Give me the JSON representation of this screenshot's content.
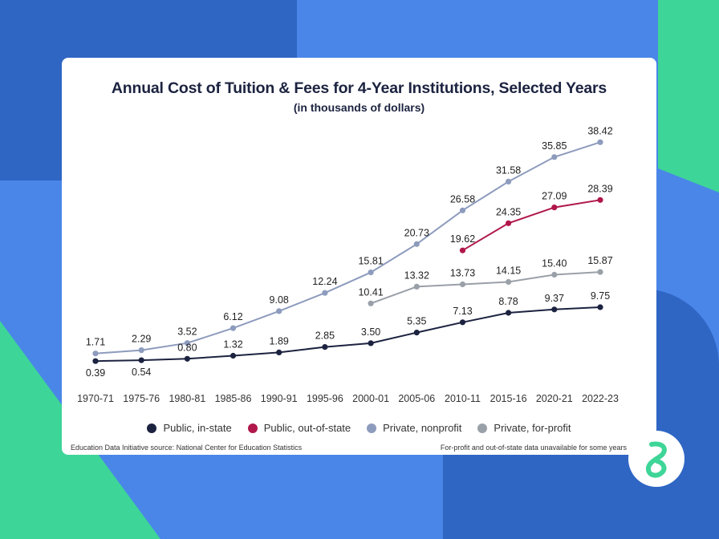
{
  "colors": {
    "background": "#4a86e8",
    "dark_blue": "#2f66c4",
    "green": "#3ed598",
    "public_in_state": "#1c2340",
    "public_out_of_state": "#b0174b",
    "private_nonprofit": "#8d9bbd",
    "private_for_profit": "#9aa0a8"
  },
  "logo_icon": "brand-logo-icon",
  "chart_data": {
    "type": "line",
    "title": "Annual Cost of Tuition & Fees for 4-Year Institutions, Selected Years",
    "subtitle": "(in thousands of dollars)",
    "categories": [
      "1970-71",
      "1975-76",
      "1980-81",
      "1985-86",
      "1990-91",
      "1995-96",
      "2000-01",
      "2005-06",
      "2010-11",
      "2015-16",
      "2020-21",
      "2022-23"
    ],
    "ylim": [
      0,
      40
    ],
    "grid": false,
    "legend_position": "bottom",
    "series": [
      {
        "name": "Public, in-state",
        "color": "#1c2340",
        "values": [
          0.39,
          0.54,
          0.8,
          1.32,
          1.89,
          2.85,
          3.5,
          5.35,
          7.13,
          8.78,
          9.37,
          9.75
        ],
        "labels": [
          "0.39",
          "0.54",
          "0.80",
          "1.32",
          "1.89",
          "2.85",
          "3.50",
          "5.35",
          "7.13",
          "8.78",
          "9.37",
          "9.75"
        ],
        "label_positions": [
          "below",
          "below",
          "above",
          "above",
          "above",
          "above",
          "above",
          "above",
          "above",
          "above",
          "above",
          "above"
        ]
      },
      {
        "name": "Public, out-of-state",
        "color": "#b0174b",
        "values": [
          null,
          null,
          null,
          null,
          null,
          null,
          null,
          null,
          19.62,
          24.35,
          27.09,
          28.39
        ],
        "labels": [
          null,
          null,
          null,
          null,
          null,
          null,
          null,
          null,
          "19.62",
          "24.35",
          "27.09",
          "28.39"
        ],
        "label_positions": [
          null,
          null,
          null,
          null,
          null,
          null,
          null,
          null,
          "above",
          "above",
          "above",
          "above"
        ]
      },
      {
        "name": "Private, nonprofit",
        "color": "#8d9bbd",
        "values": [
          1.71,
          2.29,
          3.52,
          6.12,
          9.08,
          12.24,
          15.81,
          20.73,
          26.58,
          31.58,
          35.85,
          38.42
        ],
        "labels": [
          "1.71",
          "2.29",
          "3.52",
          "6.12",
          "9.08",
          "12.24",
          "15.81",
          "20.73",
          "26.58",
          "31.58",
          "35.85",
          "38.42"
        ],
        "label_positions": [
          "above",
          "above",
          "above",
          "above",
          "above",
          "above",
          "above",
          "above",
          "above",
          "above",
          "above",
          "above"
        ]
      },
      {
        "name": "Private, for-profit",
        "color": "#9aa0a8",
        "values": [
          null,
          null,
          null,
          null,
          null,
          null,
          10.41,
          13.32,
          13.73,
          14.15,
          15.4,
          15.87
        ],
        "labels": [
          null,
          null,
          null,
          null,
          null,
          null,
          "10.41",
          "13.32",
          "13.73",
          "14.15",
          "15.40",
          "15.87"
        ],
        "label_positions": [
          null,
          null,
          null,
          null,
          null,
          null,
          "above",
          "above",
          "above",
          "above",
          "above",
          "above"
        ]
      }
    ],
    "source": "Education Data Initiative source: National Center for Education Statistics",
    "note": "For-profit and out-of-state data unavailable for some years"
  }
}
